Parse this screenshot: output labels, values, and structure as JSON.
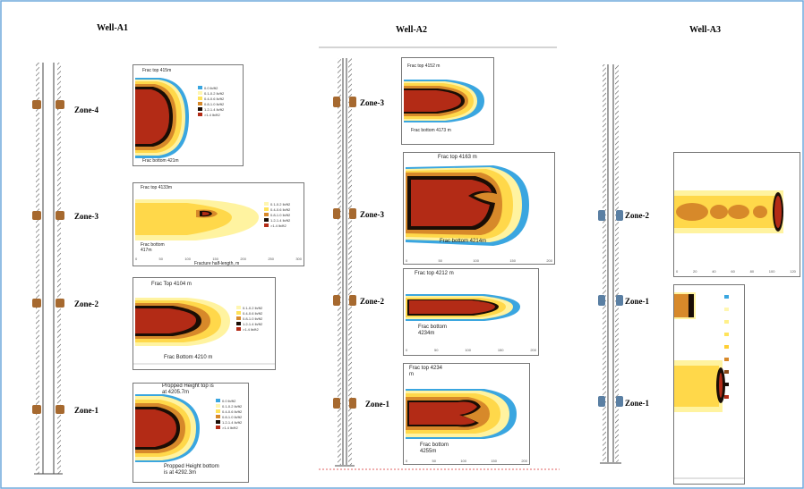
{
  "wells": [
    {
      "title": "Well-A1",
      "zones": [
        "Zone-4",
        "Zone-3",
        "Zone-2",
        "Zone-1"
      ]
    },
    {
      "title": "Well-A2",
      "zones": [
        "Zone-3",
        "Zone-3",
        "Zone-2",
        "Zone-1"
      ]
    },
    {
      "title": "Well-A3",
      "zones": [
        "Zone-2",
        "Zone-1",
        "Zone-1"
      ]
    }
  ],
  "annotations": {
    "a1_z4_top": "Frac top 415m",
    "a1_z4_bottom": "Frac bottom 421m",
    "a1_z3_top": "Frac top 4133m",
    "a1_z3_bottom": "Frac bottom 417m",
    "a1_z3_xaxis": "Fracture half-length, m",
    "a1_z2_top": "Frac Top 4104 m",
    "a1_z2_bottom": "Frac Bottom 4210 m",
    "a1_z1_top": "Propped Height top is at 4205.7m",
    "a1_z1_bottom": "Propped Height bottom is at 4292.3m",
    "a2_z3a_top": "Frac top 4152 m",
    "a2_z3a_bottom": "Frac bottom 4173 m",
    "a2_z3b_top": "Frac top 4163 m",
    "a2_z3b_bottom": "Frac bottom 4214m",
    "a2_z2_top": "Frac top 4212 m",
    "a2_z2_bottom": "Frac bottom 4234m",
    "a2_z1_top": "Frac top 4234 m",
    "a2_z1_bottom": "Frac bottom 4255m"
  },
  "ticks": {
    "short": [
      "0",
      "50",
      "100",
      "150",
      "200",
      "250"
    ],
    "a1_z3": [
      "0",
      "50",
      "100",
      "150",
      "200",
      "250",
      "300"
    ],
    "a2": [
      "0",
      "50",
      "100",
      "150",
      "200",
      "250"
    ],
    "a3": [
      "0",
      "20",
      "40",
      "60",
      "80",
      "100",
      "120"
    ]
  },
  "legend": {
    "labels": [
      "0.0 lb/ft2",
      "0.1-0.2 lb/ft2",
      "0.2-0.4 lb/ft2",
      "0.4-0.6 lb/ft2",
      "0.6-0.8 lb/ft2",
      "0.8-1.0 lb/ft2",
      "1.0-1.2 lb/ft2",
      "1.2-1.4 lb/ft2",
      ">1.4 lb/ft2"
    ],
    "colors": [
      "#3aa6e0",
      "#fff6b0",
      "#fff08a",
      "#ffe35a",
      "#ffcf33",
      "#d7892a",
      "#8a4a18",
      "#1a0d05",
      "#b32b16"
    ]
  },
  "colors": {
    "casing": "#555555",
    "perf_brown": "#a6692f",
    "perf_blue": "#5a7fa3",
    "frac_core": "#b32b16",
    "frac_dark": "#1a0d05",
    "frac_brown": "#d7892a",
    "frac_yellow": "#ffd84a",
    "frac_pale": "#fff3a0",
    "frac_blue": "#3aa6e0",
    "border": "#6fa8dc"
  }
}
